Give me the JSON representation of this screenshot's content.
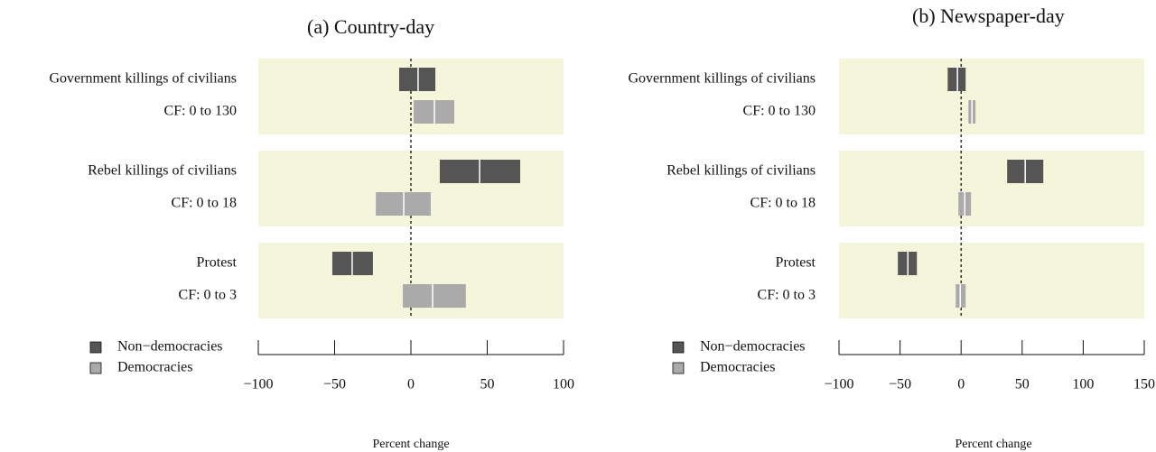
{
  "chart_data": [
    {
      "type": "range",
      "title": "(a) Country-day",
      "xlabel": "Percent change",
      "groups": [
        {
          "label": "Government killings of civilians",
          "cf_label": "CF: 0 to 130"
        },
        {
          "label": "Rebel killings of civilians",
          "cf_label": "CF: 0 to 18"
        },
        {
          "label": "Protest",
          "cf_label": "CF: 0 to 3"
        }
      ],
      "series": [
        {
          "name": "Non−democracies",
          "color": "#555555",
          "low": [
            -7.7,
            18.9,
            -51.5
          ],
          "values": [
            4.7,
            45,
            -38.5
          ],
          "high": [
            16,
            71.6,
            -24.9
          ]
        },
        {
          "name": "Democracies",
          "color": "#aaaaaa",
          "low": [
            1.8,
            -23,
            -5.3
          ],
          "values": [
            15.4,
            -4.7,
            14.2
          ],
          "high": [
            28.4,
            13,
            36
          ]
        }
      ],
      "xlim": [
        -100,
        100
      ],
      "xticks": [
        {
          "value": -100,
          "label": "−100"
        },
        {
          "value": -50,
          "label": "−50"
        },
        0,
        50,
        100
      ]
    },
    {
      "type": "range",
      "title": "(b) Newspaper-day",
      "xlabel": "Percent change",
      "groups": [
        {
          "label": "Government killings of civilians",
          "cf_label": "CF: 0 to 130"
        },
        {
          "label": "Rebel killings of civilians",
          "cf_label": "CF: 0 to 18"
        },
        {
          "label": "Protest",
          "cf_label": "CF: 0 to 3"
        }
      ],
      "series": [
        {
          "name": "Non−democracies",
          "color": "#555555",
          "low": [
            -11,
            37.7,
            -51.8
          ],
          "values": [
            -3,
            52.5,
            -43.6
          ],
          "high": [
            3.7,
            67.3,
            -36.2
          ]
        },
        {
          "name": "Democracies",
          "color": "#aaaaaa",
          "low": [
            6,
            -2.2,
            -4.4
          ],
          "values": [
            8.9,
            3,
            -0.7
          ],
          "high": [
            11.8,
            8.1,
            3.7
          ]
        }
      ],
      "xlim": [
        -100,
        150
      ],
      "xticks": [
        {
          "value": -100,
          "label": "−100"
        },
        {
          "value": -50,
          "label": "−50"
        },
        0,
        50,
        100,
        150
      ]
    }
  ]
}
